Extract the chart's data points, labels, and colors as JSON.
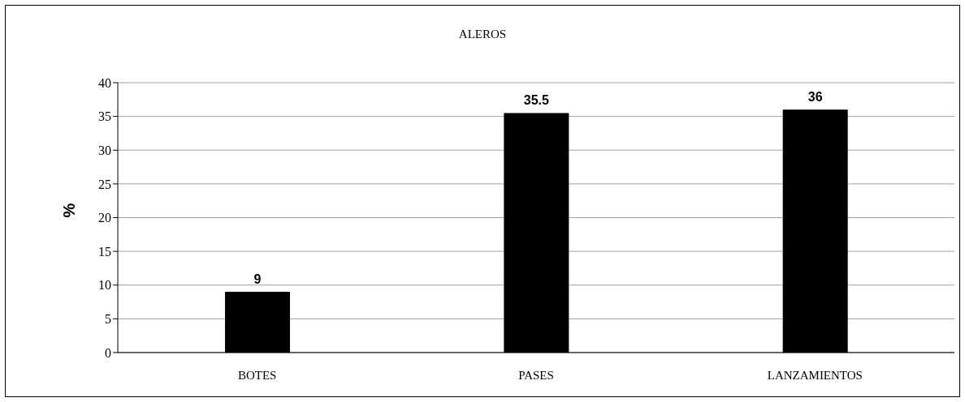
{
  "chart_data": {
    "type": "bar",
    "title": "ALEROS",
    "ylabel": "%",
    "categories": [
      "BOTES",
      "PASES",
      "LANZAMIENTOS"
    ],
    "values": [
      9,
      35.5,
      36
    ],
    "color": "#000000",
    "ylim": [
      0,
      40
    ],
    "yticks": [
      0,
      5,
      10,
      15,
      20,
      25,
      30,
      35,
      40
    ],
    "grid": "y",
    "data_labels": true
  }
}
